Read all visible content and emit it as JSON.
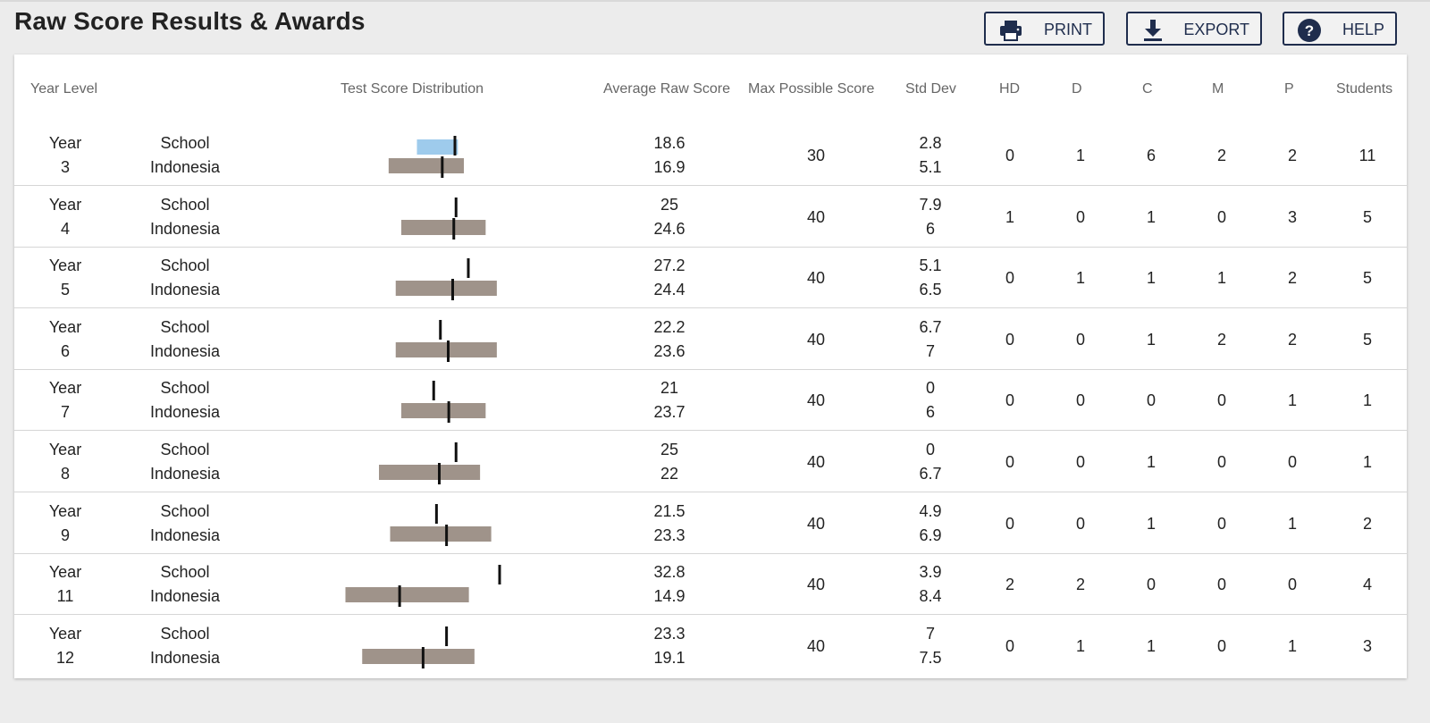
{
  "title": "Raw Score Results & Awards",
  "toolbar": {
    "print_label": "PRINT",
    "export_label": "EXPORT",
    "help_label": "HELP"
  },
  "columns": {
    "year_level": "Year Level",
    "distribution": "Test Score Distribution",
    "avg": "Average Raw Score",
    "max": "Max Possible Score",
    "std": "Std Dev",
    "hd": "HD",
    "d": "D",
    "c": "C",
    "m": "M",
    "p": "P",
    "students": "Students"
  },
  "colors": {
    "school_bar": "#9ecbec",
    "national_bar": "#9f938a",
    "marker": "#111111",
    "button_border": "#1f2d4d"
  },
  "rows": [
    {
      "year_word": "Year",
      "year": "3",
      "g1": "School",
      "g2": "Indonesia",
      "avg1": "18.6",
      "avg2": "16.9",
      "max": "30",
      "std1": "2.8",
      "std2": "5.1",
      "hd": "0",
      "d": "1",
      "c": "6",
      "m": "2",
      "p": "2",
      "students": "11",
      "school_range": [
        13.5,
        19.0
      ],
      "national_range": [
        9.7,
        19.8
      ]
    },
    {
      "year_word": "Year",
      "year": "4",
      "g1": "School",
      "g2": "Indonesia",
      "avg1": "25",
      "avg2": "24.6",
      "max": "40",
      "std1": "7.9",
      "std2": "6",
      "hd": "1",
      "d": "0",
      "c": "1",
      "m": "0",
      "p": "3",
      "students": "5",
      "national_range": [
        15.2,
        30.3
      ]
    },
    {
      "year_word": "Year",
      "year": "5",
      "g1": "School",
      "g2": "Indonesia",
      "avg1": "27.2",
      "avg2": "24.4",
      "max": "40",
      "std1": "5.1",
      "std2": "6.5",
      "hd": "0",
      "d": "1",
      "c": "1",
      "m": "1",
      "p": "2",
      "students": "5",
      "national_range": [
        14.2,
        32.3
      ]
    },
    {
      "year_word": "Year",
      "year": "6",
      "g1": "School",
      "g2": "Indonesia",
      "avg1": "22.2",
      "avg2": "23.6",
      "max": "40",
      "std1": "6.7",
      "std2": "7",
      "hd": "0",
      "d": "0",
      "c": "1",
      "m": "2",
      "p": "2",
      "students": "5",
      "national_range": [
        14.2,
        32.3
      ]
    },
    {
      "year_word": "Year",
      "year": "7",
      "g1": "School",
      "g2": "Indonesia",
      "avg1": "21",
      "avg2": "23.7",
      "max": "40",
      "std1": "0",
      "std2": "6",
      "hd": "0",
      "d": "0",
      "c": "0",
      "m": "0",
      "p": "1",
      "students": "1",
      "national_range": [
        15.2,
        30.3
      ]
    },
    {
      "year_word": "Year",
      "year": "8",
      "g1": "School",
      "g2": "Indonesia",
      "avg1": "25",
      "avg2": "22",
      "max": "40",
      "std1": "0",
      "std2": "6.7",
      "hd": "0",
      "d": "0",
      "c": "1",
      "m": "0",
      "p": "0",
      "students": "1",
      "national_range": [
        11.2,
        29.3
      ]
    },
    {
      "year_word": "Year",
      "year": "9",
      "g1": "School",
      "g2": "Indonesia",
      "avg1": "21.5",
      "avg2": "23.3",
      "max": "40",
      "std1": "4.9",
      "std2": "6.9",
      "hd": "0",
      "d": "0",
      "c": "1",
      "m": "0",
      "p": "1",
      "students": "2",
      "national_range": [
        13.2,
        31.3
      ]
    },
    {
      "year_word": "Year",
      "year": "11",
      "g1": "School",
      "g2": "Indonesia",
      "avg1": "32.8",
      "avg2": "14.9",
      "max": "40",
      "std1": "3.9",
      "std2": "8.4",
      "hd": "2",
      "d": "2",
      "c": "0",
      "m": "0",
      "p": "0",
      "students": "4",
      "national_range": [
        5.2,
        27.3
      ]
    },
    {
      "year_word": "Year",
      "year": "12",
      "g1": "School",
      "g2": "Indonesia",
      "avg1": "23.3",
      "avg2": "19.1",
      "max": "40",
      "std1": "7",
      "std2": "7.5",
      "hd": "0",
      "d": "1",
      "c": "1",
      "m": "0",
      "p": "1",
      "students": "3",
      "national_range": [
        8.2,
        28.3
      ]
    }
  ]
}
